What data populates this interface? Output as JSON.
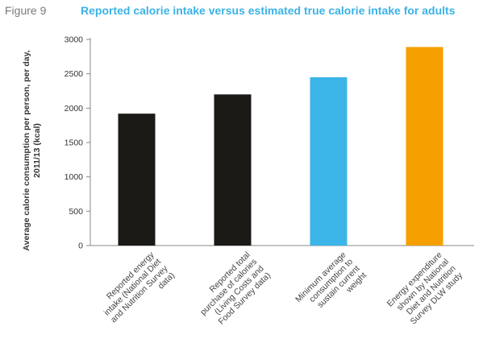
{
  "figure_label": "Figure 9",
  "chart_data": {
    "type": "bar",
    "title": "Reported calorie intake versus estimated true calorie intake for adults",
    "ylabel": "Average calorie consumption per person, per day, 2011/13 (kcal)",
    "ylabel_lines": [
      "Average calorie consumption per person, per day,",
      "2011/13 (kcal)"
    ],
    "xlabel": "",
    "ylim": [
      0,
      3000
    ],
    "yticks": [
      0,
      500,
      1000,
      1500,
      2000,
      2500,
      3000
    ],
    "grid": false,
    "categories": [
      "Reported energy intake (National Diet and Nutrition Survey data)",
      "Reported total purchase of calories (Living Costs and Food Survey data)",
      "Minimum average consumption to sustain current weight",
      "Energy expenditure shown by National Diet and Nutrition Survey DLW study"
    ],
    "category_lines": [
      [
        "Reported energy",
        "intake (National Diet",
        "and Nutrition Survey",
        "data)"
      ],
      [
        "Reported total",
        "purchase of calories",
        "(Living Costs and",
        "Food Survey data)"
      ],
      [
        "Minimum average",
        "consumption to",
        "sustain current",
        "weight"
      ],
      [
        "Energy expenditure",
        "shown by National",
        "Diet and Nutrition",
        "Survey DLW study"
      ]
    ],
    "values": [
      1920,
      2200,
      2450,
      2890
    ],
    "colors": [
      "#1c1a17",
      "#1c1a17",
      "#3bb5e8",
      "#f5a000"
    ]
  }
}
